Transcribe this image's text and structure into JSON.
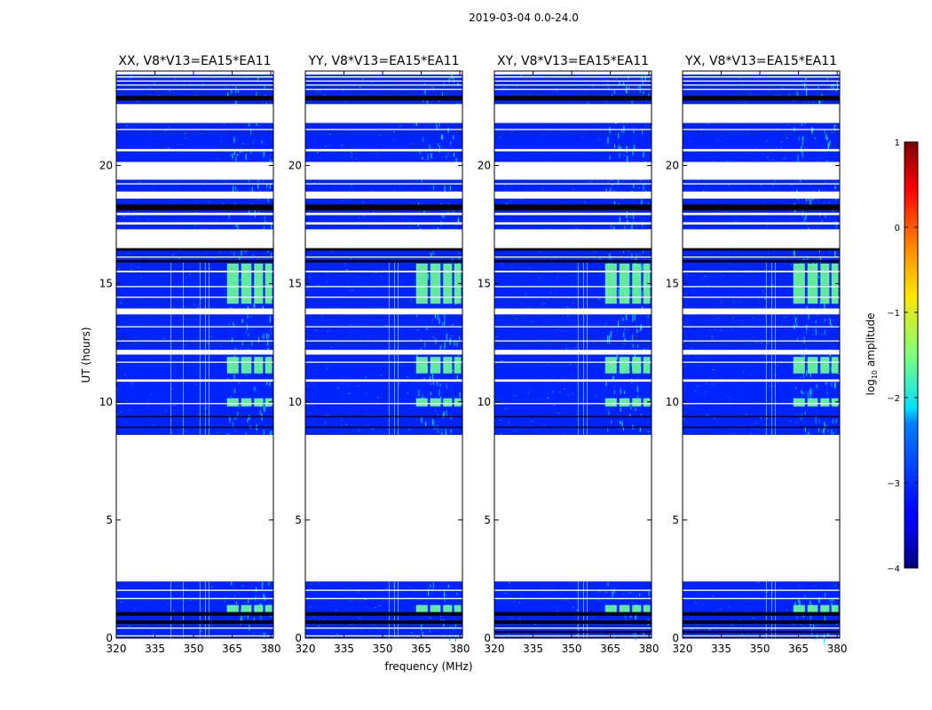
{
  "figure": {
    "suptitle": "2019-03-04 0.0-24.0",
    "ylabel": "UT (hours)",
    "xlabel": "frequency (MHz)",
    "colorbar": {
      "label_prefix": "log",
      "label_sub": "10",
      "label_suffix": " amplitude",
      "ticks": [
        1,
        0,
        -1,
        -2,
        -3,
        -4
      ],
      "tick_labels": [
        "1",
        "0",
        "−1",
        "−2",
        "−3",
        "−4"
      ],
      "range": [
        -4,
        1
      ],
      "colormap": "jet"
    }
  },
  "chart_data": {
    "type": "heatmap",
    "title": "2019-03-04 0.0-24.0",
    "xlabel": "frequency (MHz)",
    "ylabel": "UT (hours)",
    "xlim": [
      320,
      381
    ],
    "ylim": [
      0,
      24
    ],
    "xticks": [
      320,
      335,
      350,
      365,
      380
    ],
    "yticks": [
      0,
      5,
      10,
      15,
      20
    ],
    "colorbar_label": "log10 amplitude",
    "color_range": [
      -4,
      1
    ],
    "panels": [
      {
        "title": "XX, V8*V13=EA15*EA11",
        "polarization": "XX"
      },
      {
        "title": "YY, V8*V13=EA15*EA11",
        "polarization": "YY"
      },
      {
        "title": "XY, V8*V13=EA15*EA11",
        "polarization": "XY"
      },
      {
        "title": "YX, V8*V13=EA15*EA11",
        "polarization": "YX"
      }
    ],
    "data_gap_hours": [
      2.4,
      8.6
    ],
    "bright_band_mhz": [
      363,
      380
    ],
    "typical_log_amplitude": -3.2,
    "bright_band_log_amplitude": -1.6
  }
}
